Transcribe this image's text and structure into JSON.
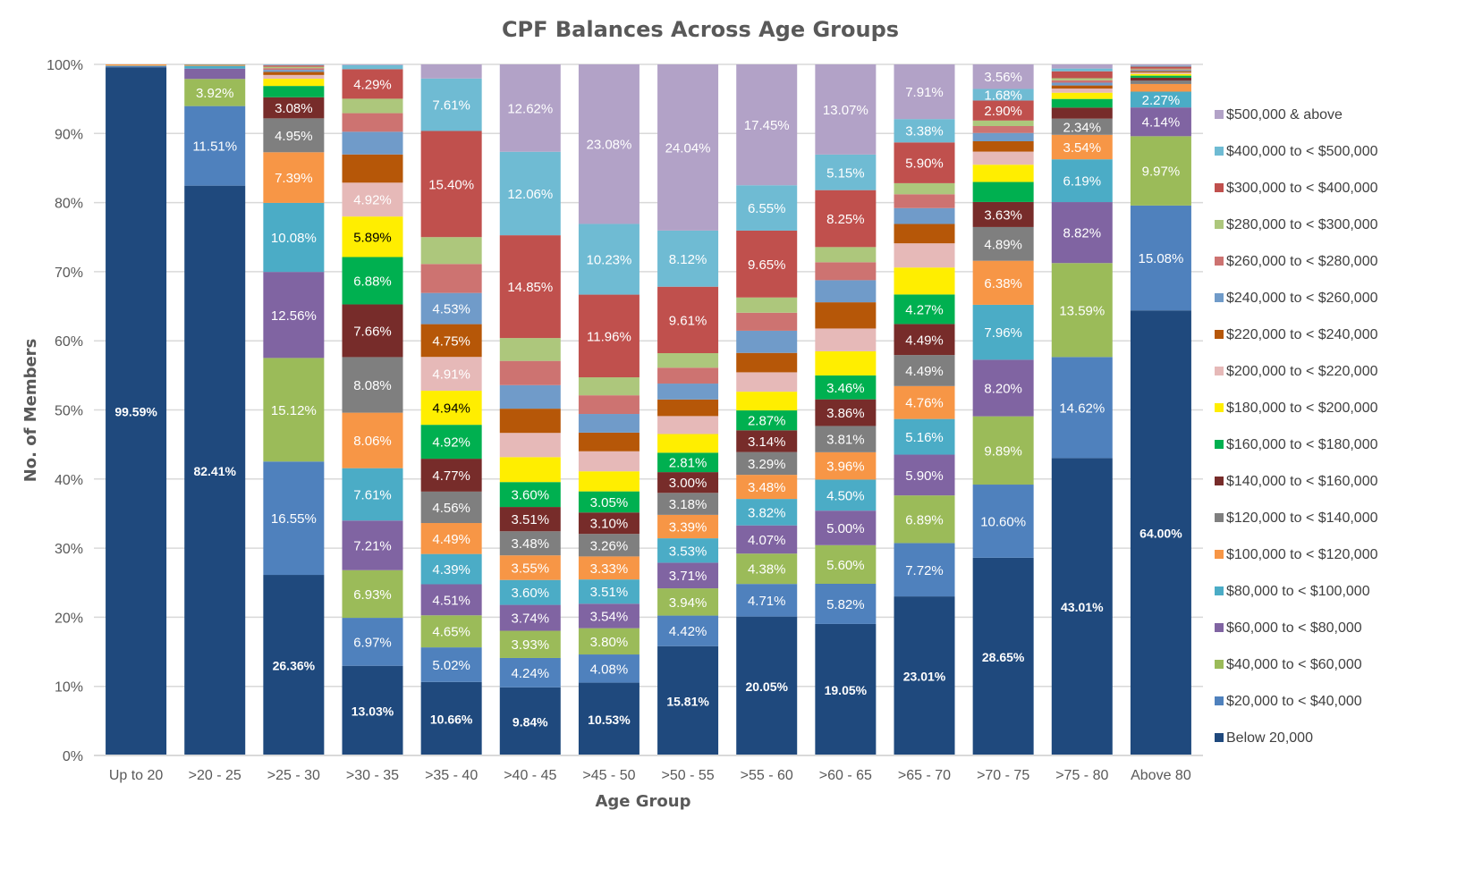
{
  "chart_data": {
    "type": "bar",
    "stacked": true,
    "percent_stacked": true,
    "title": "CPF Balances Across Age Groups",
    "xlabel": "Age Group",
    "ylabel": "No. of Members",
    "ylim": [
      0,
      100
    ],
    "yticks": [
      "0%",
      "10%",
      "20%",
      "30%",
      "40%",
      "50%",
      "60%",
      "70%",
      "80%",
      "90%",
      "100%"
    ],
    "grid": true,
    "legend_position": "right",
    "categories": [
      "Up to 20",
      ">20 - 25",
      ">25 - 30",
      ">30 - 35",
      ">35 - 40",
      ">40 - 45",
      ">45 - 50",
      ">50 - 55",
      ">55 - 60",
      ">60 - 65",
      ">65 - 70",
      ">70 - 75",
      ">75 - 80",
      "Above 80"
    ],
    "series": [
      {
        "name": "Below 20,000",
        "color": "#1f497d",
        "values": [
          99.59,
          82.41,
          26.36,
          13.03,
          10.66,
          9.84,
          10.53,
          15.81,
          20.05,
          19.05,
          23.01,
          28.65,
          43.01,
          64.0
        ],
        "labeled": [
          true,
          true,
          true,
          true,
          true,
          true,
          true,
          true,
          true,
          true,
          true,
          true,
          true,
          true
        ]
      },
      {
        "name": "$20,000 to < $40,000",
        "color": "#4f81bd",
        "values": [
          0.15,
          11.51,
          16.55,
          6.97,
          5.02,
          4.24,
          4.08,
          4.42,
          4.71,
          5.82,
          7.72,
          10.6,
          14.62,
          15.08
        ],
        "labeled": [
          false,
          true,
          true,
          true,
          true,
          true,
          true,
          true,
          true,
          true,
          true,
          true,
          true,
          true
        ]
      },
      {
        "name": "$40,000 to < $60,000",
        "color": "#9bbb59",
        "values": [
          0.05,
          3.92,
          15.12,
          6.93,
          4.65,
          3.93,
          3.8,
          3.94,
          4.38,
          5.6,
          6.89,
          9.89,
          13.59,
          9.97
        ],
        "labeled": [
          false,
          true,
          true,
          true,
          true,
          true,
          true,
          true,
          true,
          true,
          true,
          true,
          true,
          true
        ]
      },
      {
        "name": "$60,000 to < $80,000",
        "color": "#8064a2",
        "values": [
          0.03,
          1.5,
          12.56,
          7.21,
          4.51,
          3.74,
          3.54,
          3.71,
          4.07,
          5.0,
          5.9,
          8.2,
          8.82,
          4.14
        ],
        "labeled": [
          false,
          false,
          true,
          true,
          true,
          true,
          true,
          true,
          true,
          true,
          true,
          true,
          true,
          true
        ]
      },
      {
        "name": "$80,000 to < $100,000",
        "color": "#4bacc6",
        "values": [
          0.02,
          0.4,
          10.08,
          7.61,
          4.39,
          3.6,
          3.51,
          3.53,
          3.82,
          4.5,
          5.16,
          7.96,
          6.19,
          2.27
        ],
        "labeled": [
          false,
          false,
          true,
          true,
          true,
          true,
          true,
          true,
          true,
          true,
          true,
          true,
          true,
          true
        ]
      },
      {
        "name": "$100,000 to < $120,000",
        "color": "#f79646",
        "values": [
          0.16,
          0.1,
          7.39,
          8.06,
          4.49,
          3.55,
          3.33,
          3.39,
          3.48,
          3.96,
          4.76,
          6.38,
          3.54,
          1.1
        ],
        "labeled": [
          false,
          false,
          true,
          true,
          true,
          true,
          true,
          true,
          true,
          true,
          true,
          true,
          true,
          false
        ]
      },
      {
        "name": "$120,000 to < $140,000",
        "color": "#7f7f7f",
        "values": [
          0,
          0.03,
          4.95,
          8.08,
          4.56,
          3.48,
          3.26,
          3.18,
          3.29,
          3.81,
          4.49,
          4.89,
          2.34,
          0.5
        ],
        "labeled": [
          false,
          false,
          true,
          true,
          true,
          true,
          true,
          true,
          true,
          true,
          true,
          true,
          true,
          false
        ]
      },
      {
        "name": "$140,000 to < $160,000",
        "color": "#772c2a",
        "values": [
          0,
          0.03,
          3.08,
          7.66,
          4.77,
          3.51,
          3.1,
          3.0,
          3.14,
          3.86,
          4.49,
          3.63,
          1.6,
          0.4
        ],
        "labeled": [
          false,
          false,
          true,
          true,
          true,
          true,
          true,
          true,
          true,
          true,
          true,
          true,
          false,
          false
        ]
      },
      {
        "name": "$160,000 to < $180,000",
        "color": "#00b050",
        "values": [
          0,
          0.02,
          1.65,
          6.88,
          4.92,
          3.6,
          3.05,
          2.81,
          2.87,
          3.46,
          4.27,
          2.9,
          1.25,
          0.3
        ],
        "labeled": [
          false,
          false,
          false,
          true,
          true,
          true,
          true,
          true,
          true,
          true,
          true,
          false,
          false,
          false
        ]
      },
      {
        "name": "$180,000 to < $200,000",
        "color": "#ffee00",
        "values": [
          0,
          0.01,
          1.05,
          5.89,
          4.94,
          3.6,
          2.9,
          2.7,
          2.7,
          3.5,
          3.9,
          2.5,
          0.9,
          0.25
        ],
        "labeled": [
          false,
          false,
          false,
          true,
          true,
          false,
          false,
          false,
          false,
          false,
          false,
          false,
          false,
          false
        ]
      },
      {
        "name": "$200,000 to < $220,000",
        "color": "#e6b9b8",
        "values": [
          0,
          0.01,
          0.55,
          4.92,
          4.91,
          3.5,
          2.9,
          2.6,
          2.8,
          3.3,
          3.5,
          1.9,
          0.6,
          0.2
        ],
        "labeled": [
          false,
          false,
          false,
          true,
          true,
          false,
          false,
          false,
          false,
          false,
          false,
          false,
          false,
          false
        ]
      },
      {
        "name": "$220,000 to < $240,000",
        "color": "#b65708",
        "values": [
          0,
          0.01,
          0.45,
          4.1,
          4.75,
          3.5,
          2.7,
          2.4,
          2.8,
          3.8,
          2.8,
          1.5,
          0.45,
          0.18
        ],
        "labeled": [
          false,
          false,
          false,
          false,
          true,
          false,
          false,
          false,
          false,
          false,
          false,
          false,
          false,
          false
        ]
      },
      {
        "name": "$240,000 to < $260,000",
        "color": "#709bc9",
        "values": [
          0,
          0,
          0.3,
          3.3,
          4.53,
          3.4,
          2.7,
          2.3,
          3.2,
          3.2,
          2.3,
          1.2,
          0.4,
          0.15
        ],
        "labeled": [
          false,
          false,
          false,
          false,
          true,
          false,
          false,
          false,
          false,
          false,
          false,
          false,
          false,
          false
        ]
      },
      {
        "name": "$260,000 to < $280,000",
        "color": "#cd7371",
        "values": [
          0,
          0,
          0.25,
          2.7,
          4.2,
          3.5,
          2.7,
          2.3,
          2.6,
          2.6,
          2.0,
          1.0,
          0.35,
          0.12
        ],
        "labeled": [
          false,
          false,
          false,
          false,
          false,
          false,
          false,
          false,
          false,
          false,
          false,
          false,
          false,
          false
        ]
      },
      {
        "name": "$280,000 to < $300,000",
        "color": "#adc77c",
        "values": [
          0,
          0,
          0.2,
          2.1,
          3.9,
          3.3,
          2.6,
          2.1,
          2.2,
          2.2,
          1.6,
          0.8,
          0.3,
          0.1
        ],
        "labeled": [
          false,
          false,
          false,
          false,
          false,
          false,
          false,
          false,
          false,
          false,
          false,
          false,
          false,
          false
        ]
      },
      {
        "name": "$300,000 to < $400,000",
        "color": "#c0504d",
        "values": [
          0,
          0,
          0.2,
          4.29,
          15.4,
          14.85,
          11.96,
          9.61,
          9.65,
          8.25,
          5.9,
          2.9,
          1.0,
          0.3
        ],
        "labeled": [
          false,
          false,
          false,
          true,
          true,
          true,
          true,
          true,
          true,
          true,
          true,
          true,
          false,
          false
        ]
      },
      {
        "name": "$400,000 to < $500,000",
        "color": "#6fbbd3",
        "values": [
          0,
          0,
          0.1,
          0.6,
          7.61,
          12.06,
          10.23,
          8.12,
          6.55,
          5.15,
          3.38,
          1.68,
          0.4,
          0.12
        ],
        "labeled": [
          false,
          false,
          false,
          false,
          true,
          true,
          true,
          true,
          true,
          true,
          true,
          true,
          false,
          false
        ]
      },
      {
        "name": "$500,000 & above",
        "color": "#b2a2c7",
        "values": [
          0,
          0,
          0.05,
          0.1,
          2.05,
          12.62,
          23.08,
          24.04,
          17.45,
          13.07,
          7.91,
          3.56,
          0.6,
          0.2
        ],
        "labeled": [
          false,
          false,
          false,
          false,
          false,
          true,
          true,
          true,
          true,
          true,
          true,
          true,
          false,
          false
        ]
      }
    ]
  }
}
